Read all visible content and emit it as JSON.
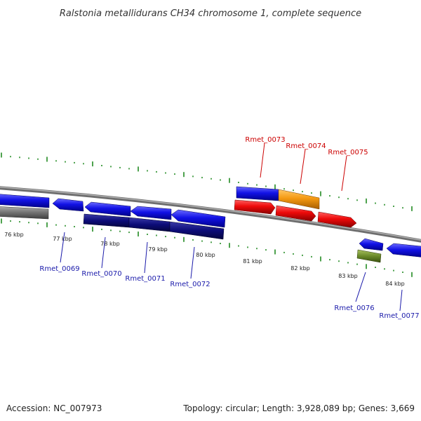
{
  "title": "Ralstonia metallidurans CH34 chromosome 1, complete sequence",
  "footer": {
    "accession": "Accession: NC_007973",
    "summary": "Topology: circular; Length: 3,928,089 bp; Genes: 3,669"
  },
  "colors": {
    "backbone": "#808080",
    "tick": "#228B22",
    "label_forward": "#cc0000",
    "label_reverse": "#1a1aaa"
  },
  "ticks": [
    {
      "label": "76 kbp"
    },
    {
      "label": "77 kbp"
    },
    {
      "label": "78 kbp"
    },
    {
      "label": "79 kbp"
    },
    {
      "label": "80 kbp"
    },
    {
      "label": "81 kbp"
    },
    {
      "label": "82 kbp"
    },
    {
      "label": "83 kbp"
    },
    {
      "label": "84 kbp"
    }
  ],
  "genes_forward": [
    {
      "name": "Rmet_0073",
      "strand": "+",
      "color": "#e81010"
    },
    {
      "name": "Rmet_0074",
      "strand": "+",
      "color": "#e81010"
    },
    {
      "name": "Rmet_0075",
      "strand": "+",
      "color": "#e81010"
    }
  ],
  "genes_reverse": [
    {
      "name": "Rmet_0069",
      "strand": "-",
      "color": "#1010e0"
    },
    {
      "name": "Rmet_0070",
      "strand": "-",
      "color": "#1010e0"
    },
    {
      "name": "Rmet_0071",
      "strand": "-",
      "color": "#1010e0"
    },
    {
      "name": "Rmet_0072",
      "strand": "-",
      "color": "#1010e0"
    },
    {
      "name": "Rmet_0076",
      "strand": "-",
      "color": "#1010e0"
    },
    {
      "name": "Rmet_0077",
      "strand": "-",
      "color": "#1010e0"
    }
  ]
}
